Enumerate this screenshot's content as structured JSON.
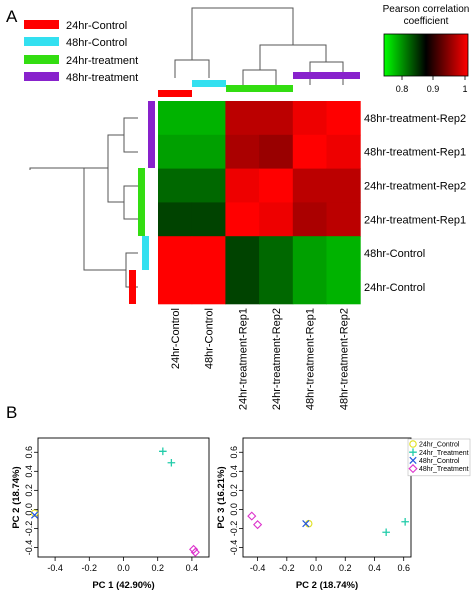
{
  "panel_labels": {
    "a": "A",
    "b": "B"
  },
  "legend": {
    "items": [
      {
        "label": "24hr-Control",
        "color": "#ff0000"
      },
      {
        "label": "48hr-Control",
        "color": "#33e0f0"
      },
      {
        "label": "24hr-treatment",
        "color": "#33dd11"
      },
      {
        "label": "48hr-treatment",
        "color": "#8822cc"
      }
    ]
  },
  "colorkey": {
    "title_line1": "Pearson correlation",
    "title_line2": "coefficient",
    "ticks": [
      "0.8",
      "0.9",
      "1"
    ],
    "low_color": "#00ff00",
    "mid_color": "#000000",
    "high_color": "#ff0000"
  },
  "chart_data": [
    {
      "type": "heatmap",
      "title": "",
      "columns": [
        "24hr-Control",
        "48hr-Control",
        "24hr-treatment-Rep1",
        "24hr-treatment-Rep2",
        "48hr-treatment-Rep1",
        "48hr-treatment-Rep2"
      ],
      "column_groups": [
        "24hr-Control",
        "48hr-Control",
        "24hr-treatment",
        "24hr-treatment",
        "48hr-treatment",
        "48hr-treatment"
      ],
      "rows": [
        "48hr-treatment-Rep2",
        "48hr-treatment-Rep1",
        "24hr-treatment-Rep2",
        "24hr-treatment-Rep1",
        "48hr-Control",
        "24hr-Control"
      ],
      "row_groups": [
        "48hr-treatment",
        "48hr-treatment",
        "24hr-treatment",
        "24hr-treatment",
        "48hr-Control",
        "24hr-Control"
      ],
      "values": [
        [
          0.8,
          0.8,
          0.96,
          0.96,
          0.99,
          1.0
        ],
        [
          0.81,
          0.81,
          0.95,
          0.94,
          1.0,
          0.99
        ],
        [
          0.84,
          0.84,
          0.99,
          1.0,
          0.96,
          0.96
        ],
        [
          0.86,
          0.86,
          1.0,
          0.99,
          0.95,
          0.96
        ],
        [
          1.0,
          1.0,
          0.86,
          0.84,
          0.81,
          0.8
        ],
        [
          1.0,
          1.0,
          0.86,
          0.84,
          0.81,
          0.8
        ]
      ],
      "value_range": [
        0.77,
        1.0
      ]
    },
    {
      "type": "scatter",
      "xlabel": "PC 1 (42.90%)",
      "ylabel": "PC 2 (18.74%)",
      "xlim": [
        -0.5,
        0.5
      ],
      "ylim": [
        -0.5,
        0.75
      ],
      "xticks": [
        "-0.4",
        "-0.2",
        "0.0",
        "0.2",
        "0.4"
      ],
      "yticks": [
        "-0.4",
        "-0.2",
        "0.0",
        "0.2",
        "0.4",
        "0.6"
      ],
      "series": [
        {
          "name": "24hr_Control",
          "marker": "circle",
          "color": "#e0e020",
          "points": [
            [
              -0.52,
              -0.04
            ]
          ]
        },
        {
          "name": "24hr_Treatment",
          "marker": "plus",
          "color": "#22ccaa",
          "points": [
            [
              0.23,
              0.61
            ],
            [
              0.28,
              0.49
            ]
          ]
        },
        {
          "name": "48hr_Control",
          "marker": "x",
          "color": "#2255dd",
          "points": [
            [
              -0.52,
              -0.06
            ]
          ]
        },
        {
          "name": "48hr_Treatment",
          "marker": "diamond",
          "color": "#dd33cc",
          "points": [
            [
              0.41,
              -0.42
            ],
            [
              0.42,
              -0.45
            ]
          ]
        }
      ]
    },
    {
      "type": "scatter",
      "xlabel": "PC 2 (18.74%)",
      "ylabel": "PC 3 (16.21%)",
      "xlim": [
        -0.5,
        0.65
      ],
      "ylim": [
        -0.5,
        0.75
      ],
      "xticks": [
        "-0.4",
        "-0.2",
        "0.0",
        "0.2",
        "0.4",
        "0.6"
      ],
      "yticks": [
        "-0.4",
        "-0.2",
        "0.0",
        "0.2",
        "0.4",
        "0.6"
      ],
      "legend_position": "top-right",
      "series": [
        {
          "name": "24hr_Control",
          "marker": "circle",
          "color": "#e0e020",
          "points": [
            [
              -0.05,
              -0.15
            ]
          ]
        },
        {
          "name": "24hr_Treatment",
          "marker": "plus",
          "color": "#22ccaa",
          "points": [
            [
              0.48,
              -0.24
            ],
            [
              0.61,
              -0.13
            ]
          ]
        },
        {
          "name": "48hr_Control",
          "marker": "x",
          "color": "#2255dd",
          "points": [
            [
              -0.07,
              -0.15
            ]
          ]
        },
        {
          "name": "48hr_Treatment",
          "marker": "diamond",
          "color": "#dd33cc",
          "points": [
            [
              -0.44,
              -0.07
            ],
            [
              -0.4,
              -0.16
            ]
          ]
        }
      ]
    }
  ]
}
